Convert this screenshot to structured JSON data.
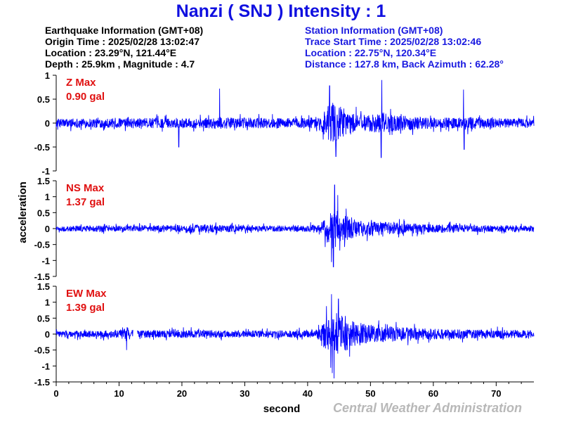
{
  "title": "Nanzi ( SNJ ) Intensity : 1",
  "earthquake_info": {
    "heading": "Earthquake Information (GMT+08)",
    "origin_time": "Origin Time : 2025/02/28 13:02:47",
    "location": "Location : 23.29°N, 121.44°E",
    "depth_magnitude": "Depth : 25.9km , Magnitude : 4.7"
  },
  "station_info": {
    "heading": "Station Information (GMT+08)",
    "trace_start": "Trace Start Time : 2025/02/28 13:02:46",
    "location": "Location : 22.75°N, 120.34°E",
    "distance": "Distance : 127.8 km, Back Azimuth : 62.28°"
  },
  "credit": "Central Weather Administration",
  "colors": {
    "trace": "#0000ff",
    "max_label": "#e01010",
    "title": "#1010e0",
    "station_info": "#1a1ae0",
    "credit": "#b8b8b8"
  },
  "chart_data": [
    {
      "type": "line",
      "component": "Z",
      "max_label": "Z Max",
      "max_value": "0.90 gal",
      "xlabel": "second",
      "ylabel": "acceleration",
      "xlim": [
        0,
        76
      ],
      "ylim": [
        -1,
        1
      ],
      "yticks": [
        -1,
        -0.5,
        0,
        0.5,
        1
      ],
      "envelope": {
        "t": [
          0,
          4,
          8,
          12,
          16,
          20,
          24,
          26,
          28,
          32,
          36,
          40,
          42,
          43,
          44,
          45,
          46,
          47,
          48,
          50,
          52,
          54,
          56,
          60,
          64,
          66,
          70,
          76
        ],
        "amp": [
          0.12,
          0.13,
          0.13,
          0.14,
          0.14,
          0.13,
          0.14,
          0.18,
          0.14,
          0.15,
          0.14,
          0.15,
          0.2,
          0.45,
          0.6,
          0.5,
          0.32,
          0.28,
          0.25,
          0.24,
          0.3,
          0.22,
          0.2,
          0.16,
          0.15,
          0.18,
          0.14,
          0.13
        ]
      },
      "spikes": [
        [
          26,
          0.72
        ],
        [
          43.5,
          0.78
        ],
        [
          44.5,
          -0.7
        ],
        [
          51.8,
          0.9
        ],
        [
          51.7,
          -0.72
        ],
        [
          64.8,
          0.7
        ],
        [
          64.9,
          -0.55
        ],
        [
          19.5,
          -0.5
        ]
      ]
    },
    {
      "type": "line",
      "component": "NS",
      "max_label": "NS Max",
      "max_value": "1.37 gal",
      "xlabel": "second",
      "ylabel": "acceleration",
      "xlim": [
        0,
        76
      ],
      "ylim": [
        -1.5,
        1.5
      ],
      "yticks": [
        -1.5,
        -1,
        -0.5,
        0,
        0.5,
        1,
        1.5
      ],
      "envelope": {
        "t": [
          0,
          4,
          8,
          12,
          16,
          20,
          24,
          28,
          32,
          36,
          40,
          42,
          43,
          44,
          45,
          46,
          47,
          48,
          50,
          52,
          54,
          56,
          60,
          64,
          70,
          76
        ],
        "amp": [
          0.12,
          0.12,
          0.13,
          0.13,
          0.14,
          0.16,
          0.17,
          0.14,
          0.13,
          0.13,
          0.14,
          0.2,
          0.55,
          0.9,
          0.7,
          0.55,
          0.45,
          0.35,
          0.3,
          0.3,
          0.25,
          0.22,
          0.18,
          0.16,
          0.14,
          0.13
        ]
      },
      "spikes": [
        [
          44.3,
          1.37
        ],
        [
          44.1,
          -1.2
        ],
        [
          43.8,
          -1.05
        ],
        [
          44.8,
          1.05
        ]
      ]
    },
    {
      "type": "line",
      "component": "EW",
      "max_label": "EW Max",
      "max_value": "1.39 gal",
      "xlabel": "second",
      "ylabel": "acceleration",
      "xlim": [
        0,
        76
      ],
      "ylim": [
        -1.5,
        1.5
      ],
      "yticks": [
        -1.5,
        -1,
        -0.5,
        0,
        0.5,
        1,
        1.5
      ],
      "gap": [
        12.2,
        12.9
      ],
      "envelope": {
        "t": [
          0,
          4,
          8,
          10,
          11,
          12,
          13,
          16,
          20,
          24,
          28,
          32,
          36,
          40,
          42,
          43,
          44,
          45,
          46,
          48,
          50,
          52,
          54,
          56,
          60,
          64,
          70,
          76
        ],
        "amp": [
          0.14,
          0.14,
          0.14,
          0.16,
          0.35,
          0.2,
          0.15,
          0.16,
          0.16,
          0.17,
          0.15,
          0.15,
          0.15,
          0.16,
          0.25,
          0.7,
          1.0,
          0.85,
          0.7,
          0.5,
          0.4,
          0.35,
          0.3,
          0.28,
          0.22,
          0.2,
          0.18,
          0.17
        ]
      },
      "spikes": [
        [
          43.8,
          1.25
        ],
        [
          44.2,
          -1.39
        ],
        [
          44.9,
          1.1
        ],
        [
          11.2,
          -0.5
        ]
      ]
    }
  ]
}
